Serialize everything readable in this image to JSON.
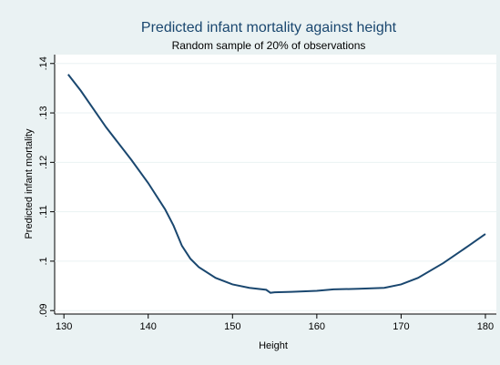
{
  "chart_data": {
    "type": "line",
    "title": "Predicted infant mortality against height",
    "subtitle": "Random sample of 20% of observations",
    "x_label": "Height",
    "y_label": "Predicted infant mortality",
    "x": [
      130.5,
      132,
      135,
      138,
      140,
      142,
      143,
      144,
      145,
      146,
      148,
      150,
      152,
      154,
      154.5,
      155,
      157,
      160,
      162,
      165,
      168,
      170,
      172,
      175,
      178,
      180
    ],
    "series": [
      {
        "name": "Predicted infant mortality",
        "color": "#1a476f",
        "values": [
          0.1378,
          0.1345,
          0.1271,
          0.1205,
          0.1158,
          0.1105,
          0.1072,
          0.1031,
          0.1005,
          0.0988,
          0.0966,
          0.0953,
          0.0946,
          0.0942,
          0.0936,
          0.0937,
          0.0938,
          0.094,
          0.0943,
          0.0944,
          0.0946,
          0.0953,
          0.0966,
          0.0996,
          0.1031,
          0.1055
        ]
      }
    ],
    "xlim": [
      128.9,
      181.3
    ],
    "ylim": [
      0.0893,
      0.1418
    ],
    "xticks": [
      130,
      140,
      150,
      160,
      170,
      180
    ],
    "yticks": [
      {
        "value": 0.09,
        "label": ".09"
      },
      {
        "value": 0.1,
        "label": ".1"
      },
      {
        "value": 0.11,
        "label": ".11"
      },
      {
        "value": 0.12,
        "label": ".12"
      },
      {
        "value": 0.13,
        "label": ".13"
      },
      {
        "value": 0.14,
        "label": ".14"
      }
    ],
    "grid": true
  }
}
